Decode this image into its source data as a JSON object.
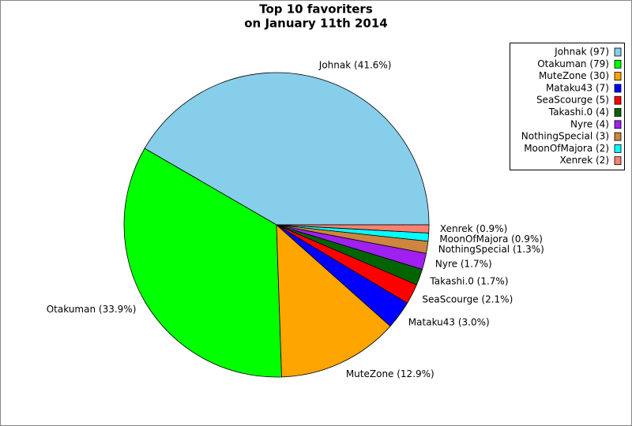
{
  "chart_data": {
    "type": "pie",
    "title": "Top 10 favoriters",
    "subtitle": "on January 11th 2014",
    "categories": [
      "Johnak (97)",
      "Otakuman (79)",
      "MuteZone (30)",
      "Mataku43 (7)",
      "SeaScourge (5)",
      "Takashi.0 (4)",
      "Nyre (4)",
      "NothingSpecial (3)",
      "MoonOfMajora (2)",
      "Xenrek (2)"
    ],
    "values": [
      97,
      79,
      30,
      7,
      5,
      4,
      4,
      3,
      2,
      2
    ],
    "value_labels": [
      "Johnak (41.6%)",
      "Otakuman (33.9%)",
      "MuteZone (12.9%)",
      "Mataku43 (3.0%)",
      "SeaScourge (2.1%)",
      "Takashi.0 (1.7%)",
      "Nyre (1.7%)",
      "NothingSpecial (1.3%)",
      "MoonOfMajora (0.9%)",
      "Xenrek (0.9%)"
    ],
    "colors": [
      "#87ceeb",
      "#00ff00",
      "#ffa500",
      "#0000ff",
      "#ff0000",
      "#006400",
      "#a020f0",
      "#cd853f",
      "#00ffff",
      "#fa8072"
    ],
    "legend": "upper right"
  }
}
